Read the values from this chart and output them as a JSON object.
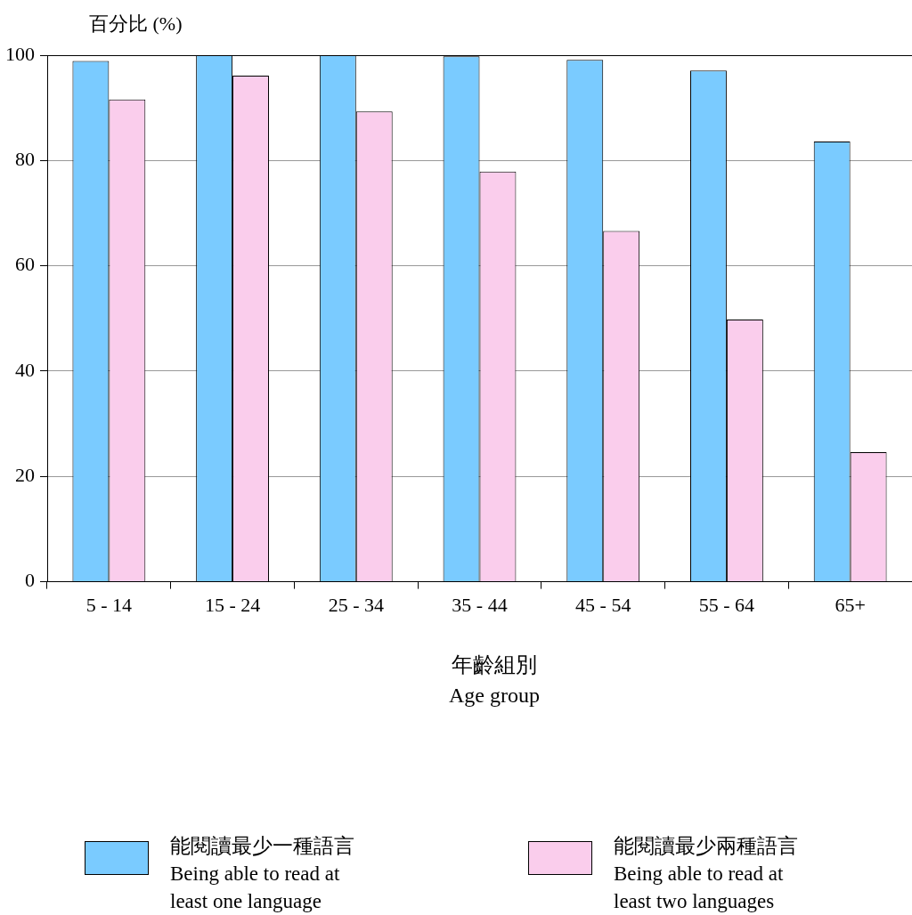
{
  "chart_data": {
    "type": "bar",
    "ylabel": "百分比 (%)",
    "xlabel": "年齡組別\nAge group",
    "categories": [
      "5 - 14",
      "15 - 24",
      "25 - 34",
      "35 - 44",
      "45 - 54",
      "55 - 64",
      "65+"
    ],
    "series": [
      {
        "name": "能閱讀最少一種語言\nBeing able to read at\nleast one language",
        "color": "#7acbff",
        "values": [
          98.9,
          100,
          100,
          99.8,
          99.1,
          97.1,
          83.6
        ]
      },
      {
        "name": "能閱讀最少兩種語言\nBeing able to read at\nleast two languages",
        "color": "#facdec",
        "values": [
          91.6,
          96.1,
          89.3,
          77.9,
          66.6,
          49.8,
          24.6
        ]
      }
    ],
    "ylim": [
      0,
      100
    ],
    "yticks": [
      0,
      20,
      40,
      60,
      80,
      100
    ],
    "grid": "y",
    "legend": "bottom"
  }
}
